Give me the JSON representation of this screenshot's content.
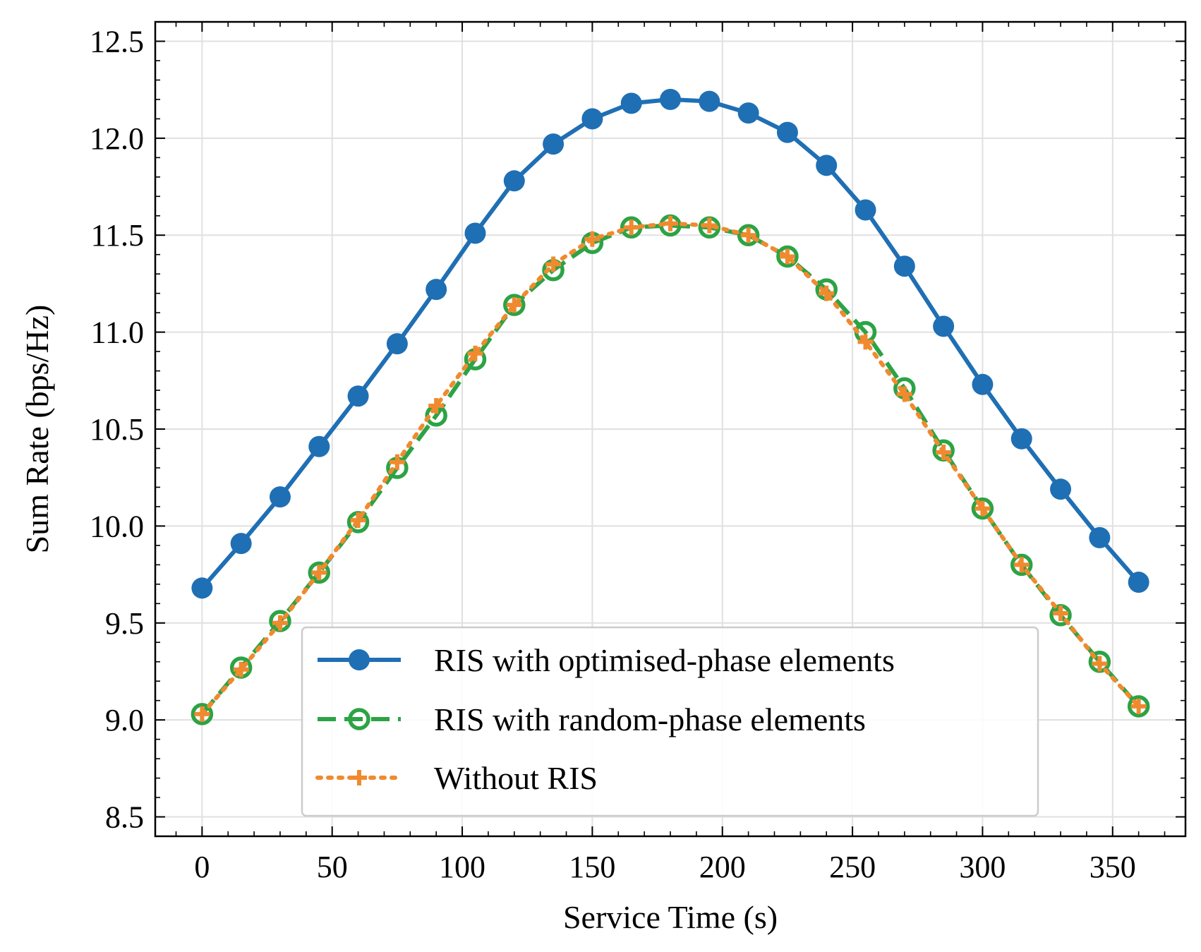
{
  "chart_data": {
    "type": "line",
    "xlabel": "Service Time (s)",
    "ylabel": "Sum Rate (bps/Hz)",
    "xlim": [
      -18,
      378
    ],
    "ylim": [
      8.4,
      12.6
    ],
    "xticks": [
      0,
      50,
      100,
      150,
      200,
      250,
      300,
      350
    ],
    "xtick_labels": [
      "0",
      "50",
      "100",
      "150",
      "200",
      "250",
      "300",
      "350"
    ],
    "yticks": [
      8.5,
      9.0,
      9.5,
      10.0,
      10.5,
      11.0,
      11.5,
      12.0,
      12.5
    ],
    "ytick_labels": [
      "8.5",
      "9.0",
      "9.5",
      "10.0",
      "10.5",
      "11.0",
      "11.5",
      "12.0",
      "12.5"
    ],
    "grid": true,
    "legend_position": "lower-center",
    "x": [
      0,
      15,
      30,
      45,
      60,
      75,
      90,
      105,
      120,
      135,
      150,
      165,
      180,
      195,
      210,
      225,
      240,
      255,
      270,
      285,
      300,
      315,
      330,
      345,
      360
    ],
    "series": [
      {
        "name": "RIS with optimised-phase elements",
        "color": "#1f6fb4",
        "line_style": "solid",
        "marker": "filled-circle",
        "values": [
          9.68,
          9.91,
          10.15,
          10.41,
          10.67,
          10.94,
          11.22,
          11.51,
          11.78,
          11.97,
          12.1,
          12.18,
          12.2,
          12.19,
          12.13,
          12.03,
          11.86,
          11.63,
          11.34,
          11.03,
          10.73,
          10.45,
          10.19,
          9.94,
          9.71
        ]
      },
      {
        "name": "RIS with random-phase elements",
        "color": "#2ca345",
        "line_style": "dashed",
        "marker": "hollow-circle",
        "values": [
          9.03,
          9.27,
          9.51,
          9.76,
          10.02,
          10.3,
          10.57,
          10.86,
          11.14,
          11.32,
          11.46,
          11.54,
          11.55,
          11.54,
          11.5,
          11.39,
          11.22,
          11.0,
          10.71,
          10.39,
          10.09,
          9.8,
          9.54,
          9.3,
          9.07
        ]
      },
      {
        "name": "Without RIS",
        "color": "#f08a2e",
        "line_style": "dotted",
        "marker": "plus",
        "values": [
          9.03,
          9.26,
          9.5,
          9.76,
          10.03,
          10.33,
          10.62,
          10.89,
          11.14,
          11.35,
          11.48,
          11.54,
          11.56,
          11.55,
          11.5,
          11.39,
          11.2,
          10.95,
          10.68,
          10.38,
          10.09,
          9.8,
          9.55,
          9.29,
          9.07
        ]
      }
    ]
  }
}
